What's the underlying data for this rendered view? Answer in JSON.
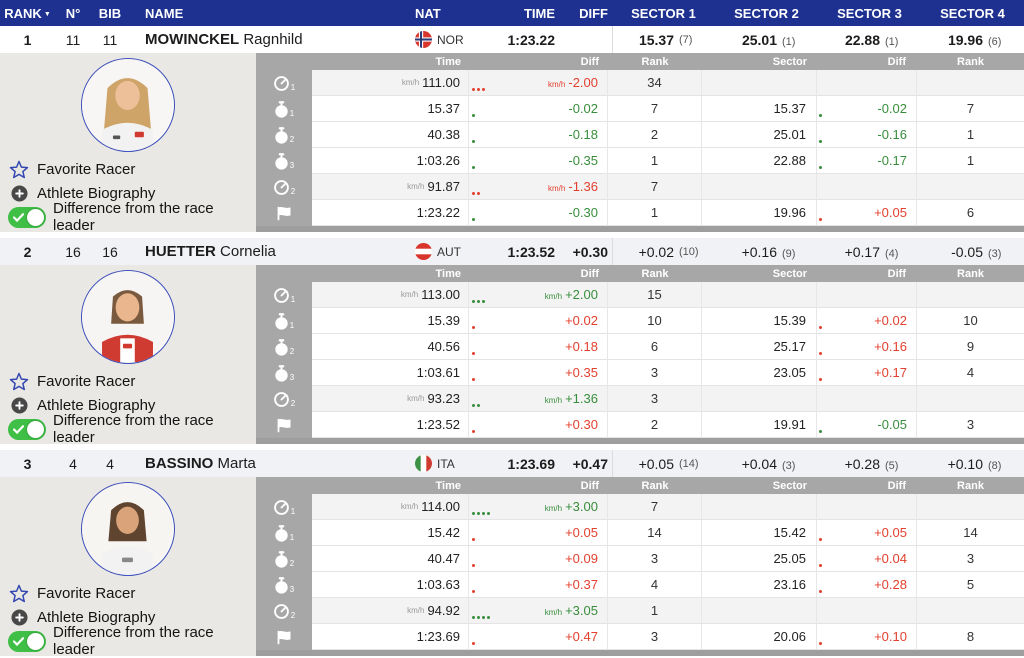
{
  "colors": {
    "header_navy": "#1e3191",
    "accent_red": "#e2402f",
    "accent_green": "#388e3c",
    "toggle_green": "#3fbf46",
    "panel_gray": "#a7a7a7",
    "sidebar_gray": "#e9e8e5"
  },
  "table_header": {
    "rank": "RANK",
    "sort": "▼",
    "no": "N°",
    "bib": "BIB",
    "name": "NAME",
    "nat": "NAT",
    "time": "TIME",
    "diff": "DIFF",
    "s1": "SECTOR 1",
    "s2": "SECTOR 2",
    "s3": "SECTOR 3",
    "s4": "SECTOR 4"
  },
  "panel_header": {
    "time": "Time",
    "diff": "Diff",
    "rank": "Rank",
    "sector": "Sector",
    "diff2": "Diff",
    "rank2": "Rank"
  },
  "sidebar": {
    "favorite": "Favorite Racer",
    "biography": "Athlete Biography",
    "difference": "Difference from the race leader"
  },
  "icons": {
    "favorite": "star-icon",
    "biography": "plus-icon",
    "difference": "toggle-on-icon",
    "rows": [
      "speedometer-icon",
      "stopwatch-icon",
      "stopwatch-icon",
      "stopwatch-icon",
      "speedometer-icon",
      "finish-flag-icon"
    ]
  },
  "row_subs": [
    "1",
    "1",
    "2",
    "3",
    "2",
    ""
  ],
  "racers": [
    {
      "rank": "1",
      "no": "11",
      "bib": "11",
      "last": "MOWINCKEL",
      "first": "Ragnhild",
      "nat": "NOR",
      "time": "1:23.22",
      "diff": "",
      "sectors": [
        {
          "v": "15.37",
          "r": "(7)"
        },
        {
          "v": "25.01",
          "r": "(1)"
        },
        {
          "v": "22.88",
          "r": "(1)"
        },
        {
          "v": "19.96",
          "r": "(6)"
        }
      ],
      "rows": [
        {
          "u": "km/h",
          "t": "111.00",
          "du": "km/h",
          "d": "-2.00",
          "dc": "red",
          "rk": "34",
          "s": "",
          "sd": "",
          "srk": "",
          "dots": {
            "n": 3,
            "c": "red"
          }
        },
        {
          "t": "15.37",
          "d": "-0.02",
          "dc": "green",
          "rk": "7",
          "s": "15.37",
          "sd": "-0.02",
          "sdc": "green",
          "srk": "7",
          "dots": {
            "n": 1,
            "c": "green"
          },
          "sdots": {
            "n": 1,
            "c": "green"
          }
        },
        {
          "t": "40.38",
          "d": "-0.18",
          "dc": "green",
          "rk": "2",
          "s": "25.01",
          "sd": "-0.16",
          "sdc": "green",
          "srk": "1",
          "dots": {
            "n": 1,
            "c": "green"
          },
          "sdots": {
            "n": 1,
            "c": "green"
          }
        },
        {
          "t": "1:03.26",
          "d": "-0.35",
          "dc": "green",
          "rk": "1",
          "s": "22.88",
          "sd": "-0.17",
          "sdc": "green",
          "srk": "1",
          "dots": {
            "n": 1,
            "c": "green"
          },
          "sdots": {
            "n": 1,
            "c": "green"
          }
        },
        {
          "u": "km/h",
          "t": "91.87",
          "du": "km/h",
          "d": "-1.36",
          "dc": "red",
          "rk": "7",
          "s": "",
          "sd": "",
          "srk": "",
          "dots": {
            "n": 2,
            "c": "red"
          }
        },
        {
          "t": "1:23.22",
          "d": "-0.30",
          "dc": "green",
          "rk": "1",
          "s": "19.96",
          "sd": "+0.05",
          "sdc": "red",
          "srk": "6",
          "dots": {
            "n": 1,
            "c": "green"
          },
          "sdots": {
            "n": 1,
            "c": "red"
          }
        }
      ]
    },
    {
      "rank": "2",
      "no": "16",
      "bib": "16",
      "last": "HUETTER",
      "first": "Cornelia",
      "nat": "AUT",
      "time": "1:23.52",
      "diff": "+0.30",
      "sectors": [
        {
          "v": "+0.02",
          "r": "(10)"
        },
        {
          "v": "+0.16",
          "r": "(9)"
        },
        {
          "v": "+0.17",
          "r": "(4)"
        },
        {
          "v": "-0.05",
          "r": "(3)"
        }
      ],
      "rows": [
        {
          "u": "km/h",
          "t": "113.00",
          "du": "km/h",
          "d": "+2.00",
          "dc": "green",
          "rk": "15",
          "s": "",
          "sd": "",
          "srk": "",
          "dots": {
            "n": 3,
            "c": "green"
          }
        },
        {
          "t": "15.39",
          "d": "+0.02",
          "dc": "red",
          "rk": "10",
          "s": "15.39",
          "sd": "+0.02",
          "sdc": "red",
          "srk": "10",
          "dots": {
            "n": 1,
            "c": "red"
          },
          "sdots": {
            "n": 1,
            "c": "red"
          }
        },
        {
          "t": "40.56",
          "d": "+0.18",
          "dc": "red",
          "rk": "6",
          "s": "25.17",
          "sd": "+0.16",
          "sdc": "red",
          "srk": "9",
          "dots": {
            "n": 1,
            "c": "red"
          },
          "sdots": {
            "n": 1,
            "c": "red"
          }
        },
        {
          "t": "1:03.61",
          "d": "+0.35",
          "dc": "red",
          "rk": "3",
          "s": "23.05",
          "sd": "+0.17",
          "sdc": "red",
          "srk": "4",
          "dots": {
            "n": 1,
            "c": "red"
          },
          "sdots": {
            "n": 1,
            "c": "red"
          }
        },
        {
          "u": "km/h",
          "t": "93.23",
          "du": "km/h",
          "d": "+1.36",
          "dc": "green",
          "rk": "3",
          "s": "",
          "sd": "",
          "srk": "",
          "dots": {
            "n": 2,
            "c": "green"
          }
        },
        {
          "t": "1:23.52",
          "d": "+0.30",
          "dc": "red",
          "rk": "2",
          "s": "19.91",
          "sd": "-0.05",
          "sdc": "green",
          "srk": "3",
          "dots": {
            "n": 1,
            "c": "red"
          },
          "sdots": {
            "n": 1,
            "c": "green"
          }
        }
      ]
    },
    {
      "rank": "3",
      "no": "4",
      "bib": "4",
      "last": "BASSINO",
      "first": "Marta",
      "nat": "ITA",
      "time": "1:23.69",
      "diff": "+0.47",
      "sectors": [
        {
          "v": "+0.05",
          "r": "(14)"
        },
        {
          "v": "+0.04",
          "r": "(3)"
        },
        {
          "v": "+0.28",
          "r": "(5)"
        },
        {
          "v": "+0.10",
          "r": "(8)"
        }
      ],
      "rows": [
        {
          "u": "km/h",
          "t": "114.00",
          "du": "km/h",
          "d": "+3.00",
          "dc": "green",
          "rk": "7",
          "s": "",
          "sd": "",
          "srk": "",
          "dots": {
            "n": 4,
            "c": "green"
          }
        },
        {
          "t": "15.42",
          "d": "+0.05",
          "dc": "red",
          "rk": "14",
          "s": "15.42",
          "sd": "+0.05",
          "sdc": "red",
          "srk": "14",
          "dots": {
            "n": 1,
            "c": "red"
          },
          "sdots": {
            "n": 1,
            "c": "red"
          }
        },
        {
          "t": "40.47",
          "d": "+0.09",
          "dc": "red",
          "rk": "3",
          "s": "25.05",
          "sd": "+0.04",
          "sdc": "red",
          "srk": "3",
          "dots": {
            "n": 1,
            "c": "red"
          },
          "sdots": {
            "n": 1,
            "c": "red"
          }
        },
        {
          "t": "1:03.63",
          "d": "+0.37",
          "dc": "red",
          "rk": "4",
          "s": "23.16",
          "sd": "+0.28",
          "sdc": "red",
          "srk": "5",
          "dots": {
            "n": 1,
            "c": "red"
          },
          "sdots": {
            "n": 1,
            "c": "red"
          }
        },
        {
          "u": "km/h",
          "t": "94.92",
          "du": "km/h",
          "d": "+3.05",
          "dc": "green",
          "rk": "1",
          "s": "",
          "sd": "",
          "srk": "",
          "dots": {
            "n": 4,
            "c": "green"
          }
        },
        {
          "t": "1:23.69",
          "d": "+0.47",
          "dc": "red",
          "rk": "3",
          "s": "20.06",
          "sd": "+0.10",
          "sdc": "red",
          "srk": "8",
          "dots": {
            "n": 1,
            "c": "red"
          },
          "sdots": {
            "n": 1,
            "c": "red"
          }
        }
      ]
    }
  ]
}
